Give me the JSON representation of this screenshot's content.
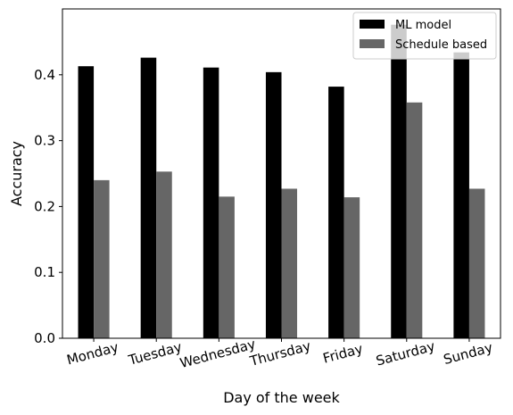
{
  "chart_data": {
    "type": "bar",
    "categories": [
      "Monday",
      "Tuesday",
      "Wednesday",
      "Thursday",
      "Friday",
      "Saturday",
      "Sunday"
    ],
    "series": [
      {
        "name": "ML model",
        "values": [
          0.413,
          0.426,
          0.411,
          0.404,
          0.382,
          0.476,
          0.434
        ],
        "color": "#000000"
      },
      {
        "name": "Schedule based",
        "values": [
          0.24,
          0.253,
          0.215,
          0.227,
          0.214,
          0.358,
          0.227
        ],
        "color": "#666666"
      }
    ],
    "xlabel": "Day of the week",
    "ylabel": "Accuracy",
    "ylim": [
      0,
      0.5
    ],
    "yticks": [
      0.0,
      0.1,
      0.2,
      0.3,
      0.4
    ],
    "ytick_labels": [
      "0.0",
      "0.1",
      "0.2",
      "0.3",
      "0.4"
    ],
    "grid": false,
    "legend_position": "top-right"
  }
}
